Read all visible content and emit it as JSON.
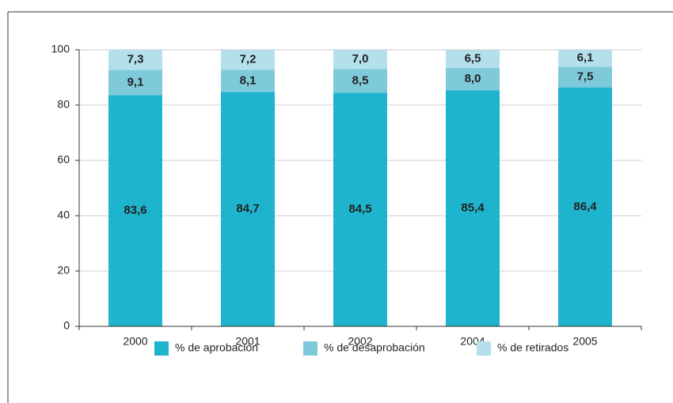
{
  "chart_data": {
    "type": "stacked_bar",
    "categories": [
      "2000",
      "2001",
      "2002",
      "2004",
      "2005"
    ],
    "series": [
      {
        "name": "% de aprobación",
        "color": "#1fb4cd",
        "values": [
          83.6,
          84.7,
          84.5,
          85.4,
          86.4
        ],
        "value_labels": [
          "83,6",
          "84,7",
          "84,5",
          "85,4",
          "86,4"
        ]
      },
      {
        "name": "% de desaprobación",
        "color": "#7ecadb",
        "values": [
          9.1,
          8.1,
          8.5,
          8.0,
          7.5
        ],
        "value_labels": [
          "9,1",
          "8,1",
          "8,5",
          "8,0",
          "7,5"
        ]
      },
      {
        "name": "% de retirados",
        "color": "#b4e0ec",
        "values": [
          7.3,
          7.2,
          7.0,
          6.5,
          6.1
        ],
        "value_labels": [
          "7,3",
          "7,2",
          "7,0",
          "6,5",
          "6,1"
        ]
      }
    ],
    "ylim": [
      0,
      100
    ],
    "yticks": [
      0,
      20,
      40,
      60,
      80,
      100
    ],
    "grid": true,
    "legend": "bottom"
  }
}
